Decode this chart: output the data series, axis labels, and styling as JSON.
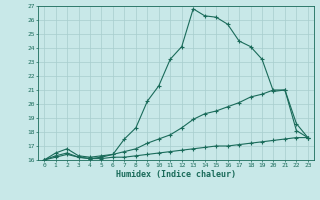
{
  "xlabel": "Humidex (Indice chaleur)",
  "xlim": [
    -0.5,
    23.5
  ],
  "ylim": [
    16,
    27
  ],
  "xticks": [
    0,
    1,
    2,
    3,
    4,
    5,
    6,
    7,
    8,
    9,
    10,
    11,
    12,
    13,
    14,
    15,
    16,
    17,
    18,
    19,
    20,
    21,
    22,
    23
  ],
  "yticks": [
    16,
    17,
    18,
    19,
    20,
    21,
    22,
    23,
    24,
    25,
    26,
    27
  ],
  "bg_color": "#c8e8e8",
  "grid_color": "#a8cece",
  "line_color": "#1a6b5a",
  "curve1_x": [
    0,
    1,
    2,
    3,
    4,
    5,
    6,
    7,
    8,
    9,
    10,
    11,
    12,
    13,
    14,
    15,
    16,
    17,
    18,
    19,
    20,
    21,
    22,
    23
  ],
  "curve1_y": [
    16.0,
    16.5,
    16.8,
    16.3,
    16.2,
    16.3,
    16.4,
    17.5,
    18.3,
    20.2,
    21.3,
    23.2,
    24.1,
    26.8,
    26.3,
    26.2,
    25.7,
    24.5,
    24.1,
    23.2,
    20.9,
    21.0,
    18.1,
    17.6
  ],
  "curve2_x": [
    0,
    1,
    2,
    3,
    4,
    5,
    6,
    7,
    8,
    9,
    10,
    11,
    12,
    13,
    14,
    15,
    16,
    17,
    18,
    19,
    20,
    21,
    22,
    23
  ],
  "curve2_y": [
    16.0,
    16.3,
    16.5,
    16.2,
    16.1,
    16.2,
    16.4,
    16.6,
    16.8,
    17.2,
    17.5,
    17.8,
    18.3,
    18.9,
    19.3,
    19.5,
    19.8,
    20.1,
    20.5,
    20.7,
    21.0,
    21.0,
    18.6,
    17.6
  ],
  "curve3_x": [
    0,
    1,
    2,
    3,
    4,
    5,
    6,
    7,
    8,
    9,
    10,
    11,
    12,
    13,
    14,
    15,
    16,
    17,
    18,
    19,
    20,
    21,
    22,
    23
  ],
  "curve3_y": [
    16.0,
    16.2,
    16.4,
    16.2,
    16.1,
    16.1,
    16.2,
    16.2,
    16.3,
    16.4,
    16.5,
    16.6,
    16.7,
    16.8,
    16.9,
    17.0,
    17.0,
    17.1,
    17.2,
    17.3,
    17.4,
    17.5,
    17.6,
    17.6
  ]
}
